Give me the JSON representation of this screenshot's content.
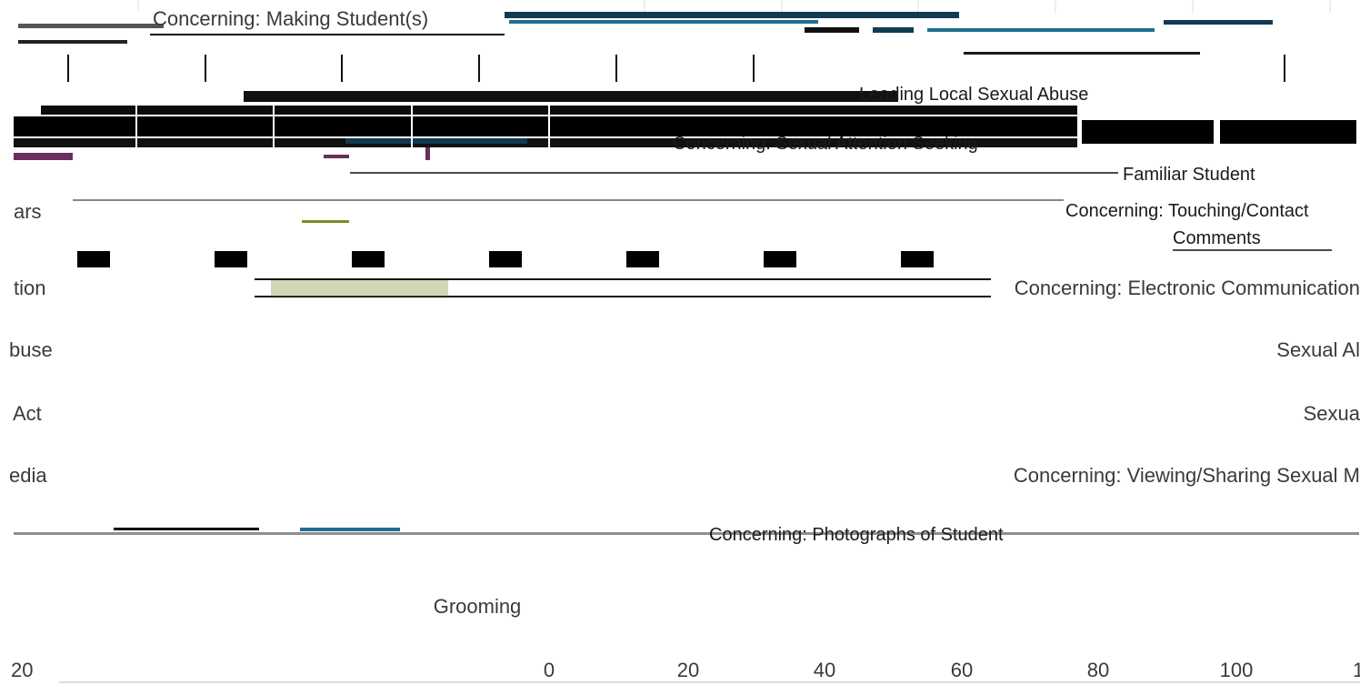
{
  "chart_data": {
    "type": "bar",
    "orientation": "horizontal",
    "x_ticks": [
      "20",
      "0",
      "20",
      "40",
      "60",
      "80",
      "100",
      "1"
    ],
    "y_categories_visible": [
      "Concerning: Making Student(s)",
      "Concerning: Electronic Communication",
      "Sexual Al",
      "Sexua",
      "Concerning: Viewing/Sharing Sexual M",
      "Grooming"
    ],
    "left_edge_fragments": [
      "ars",
      "tion",
      "buse",
      "Act",
      "edia"
    ],
    "other_text_fragments": [
      "Leading Local Sexual Abuse",
      "Concerning: Sexual Attention Seeking",
      "Familiar Student",
      "Concerning: Touching/Contact",
      "Comments",
      "Concerning: Photographs of Student"
    ],
    "grid": "vertical",
    "colors": {
      "navy_bar": "#123a52",
      "teal_bar": "#1f6f8f",
      "purple_bar": "#6a2d5f",
      "olive_bar": "#7d8b27",
      "black_block": "#000000",
      "text": "#3a3a3a"
    }
  }
}
